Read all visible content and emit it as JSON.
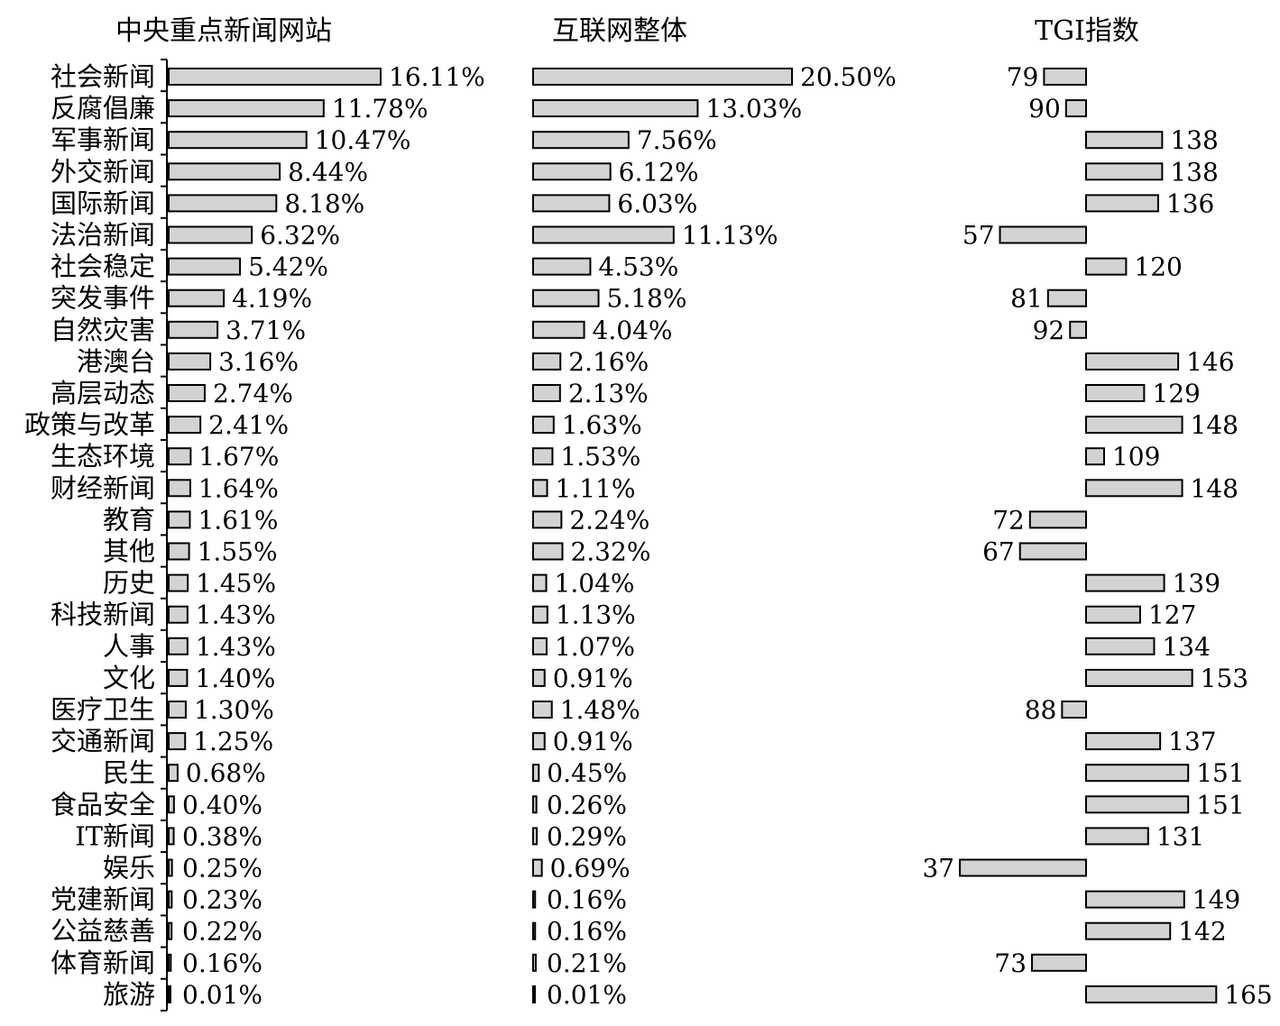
{
  "chart_data": {
    "type": "bar",
    "orientation": "horizontal",
    "categories": [
      "社会新闻",
      "反腐倡廉",
      "军事新闻",
      "外交新闻",
      "国际新闻",
      "法治新闻",
      "社会稳定",
      "突发事件",
      "自然灾害",
      "港澳台",
      "高层动态",
      "政策与改革",
      "生态环境",
      "财经新闻",
      "教育",
      "其他",
      "历史",
      "科技新闻",
      "人事",
      "文化",
      "医疗卫生",
      "交通新闻",
      "民生",
      "食品安全",
      "IT新闻",
      "娱乐",
      "党建新闻",
      "公益慈善",
      "体育新闻",
      "旅游"
    ],
    "series": [
      {
        "name": "中央重点新闻网站",
        "labels": [
          "16.11%",
          "11.78%",
          "10.47%",
          "8.44%",
          "8.18%",
          "6.32%",
          "5.42%",
          "4.19%",
          "3.71%",
          "3.16%",
          "2.74%",
          "2.41%",
          "1.67%",
          "1.64%",
          "1.61%",
          "1.55%",
          "1.45%",
          "1.43%",
          "1.43%",
          "1.40%",
          "1.30%",
          "1.25%",
          "0.68%",
          "0.40%",
          "0.38%",
          "0.25%",
          "0.23%",
          "0.22%",
          "0.16%",
          "0.01%"
        ],
        "values": [
          16.11,
          11.78,
          10.47,
          8.44,
          8.18,
          6.32,
          5.42,
          4.19,
          3.71,
          3.16,
          2.74,
          2.41,
          1.67,
          1.64,
          1.61,
          1.55,
          1.45,
          1.43,
          1.43,
          1.4,
          1.3,
          1.25,
          0.68,
          0.4,
          0.38,
          0.25,
          0.23,
          0.22,
          0.16,
          0.01
        ]
      },
      {
        "name": "互联网整体",
        "labels": [
          "20.50%",
          "13.03%",
          "7.56%",
          "6.12%",
          "6.03%",
          "11.13%",
          "4.53%",
          "5.18%",
          "4.04%",
          "2.16%",
          "2.13%",
          "1.63%",
          "1.53%",
          "1.11%",
          "2.24%",
          "2.32%",
          "1.04%",
          "1.13%",
          "1.07%",
          "0.91%",
          "1.48%",
          "0.91%",
          "0.45%",
          "0.26%",
          "0.29%",
          "0.69%",
          "0.16%",
          "0.16%",
          "0.21%",
          "0.01%"
        ],
        "values": [
          20.5,
          13.03,
          7.56,
          6.12,
          6.03,
          11.13,
          4.53,
          5.18,
          4.04,
          2.16,
          2.13,
          1.63,
          1.53,
          1.11,
          2.24,
          2.32,
          1.04,
          1.13,
          1.07,
          0.91,
          1.48,
          0.91,
          0.45,
          0.26,
          0.29,
          0.69,
          0.16,
          0.16,
          0.21,
          0.01
        ]
      },
      {
        "name": "TGI指数",
        "baseline": 100,
        "labels": [
          "79",
          "90",
          "138",
          "138",
          "136",
          "57",
          "120",
          "81",
          "92",
          "146",
          "129",
          "148",
          "109",
          "148",
          "72",
          "67",
          "139",
          "127",
          "134",
          "153",
          "88",
          "137",
          "151",
          "151",
          "131",
          "37",
          "149",
          "142",
          "73",
          "165"
        ],
        "values": [
          79,
          90,
          138,
          138,
          136,
          57,
          120,
          81,
          92,
          146,
          129,
          148,
          109,
          148,
          72,
          67,
          139,
          127,
          134,
          153,
          88,
          137,
          151,
          151,
          131,
          37,
          149,
          142,
          73,
          165
        ]
      }
    ],
    "bar_fill": "#d3d3d3",
    "bar_stroke": "#000000",
    "grid": false,
    "legend": "none"
  }
}
